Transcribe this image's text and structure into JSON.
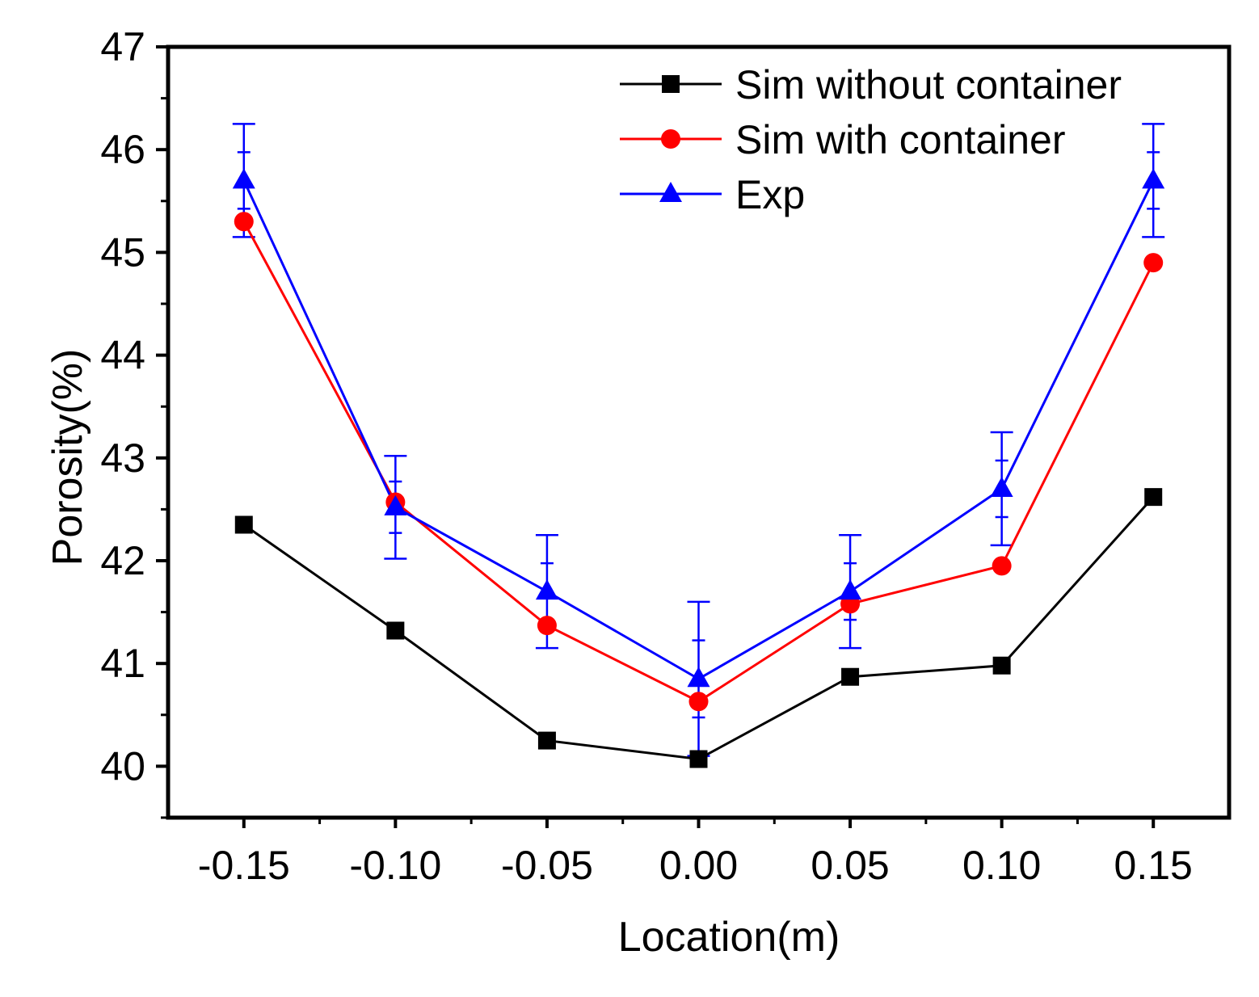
{
  "chart_data": {
    "type": "line",
    "title": "",
    "xlabel": "Location(m)",
    "ylabel": "Porosity(%)",
    "xlim": [
      -0.175,
      0.175
    ],
    "ylim": [
      39.5,
      47
    ],
    "x": [
      -0.15,
      -0.1,
      -0.05,
      0.0,
      0.05,
      0.1,
      0.15
    ],
    "xtick_labels": [
      "-0.15",
      "-0.10",
      "-0.05",
      "0.00",
      "0.05",
      "0.10",
      "0.15"
    ],
    "ytick_values": [
      40,
      41,
      42,
      43,
      44,
      45,
      46,
      47
    ],
    "ytick_labels": [
      "40",
      "41",
      "42",
      "43",
      "44",
      "45",
      "46",
      "47"
    ],
    "legend_position": "top-right",
    "grid": false,
    "series": [
      {
        "name": "Sim without container",
        "color": "#000000",
        "marker": "square",
        "values": [
          42.35,
          41.32,
          40.25,
          40.07,
          40.87,
          40.98,
          42.62
        ]
      },
      {
        "name": "Sim with container",
        "color": "#ff0000",
        "marker": "circle",
        "values": [
          45.3,
          42.57,
          41.37,
          40.63,
          41.58,
          41.95,
          44.9
        ]
      },
      {
        "name": "Exp",
        "color": "#0000ff",
        "marker": "triangle",
        "values": [
          45.7,
          42.52,
          41.7,
          40.85,
          41.7,
          42.7,
          45.7
        ],
        "error": [
          0.55,
          0.5,
          0.55,
          0.75,
          0.55,
          0.55,
          0.55
        ]
      }
    ]
  }
}
